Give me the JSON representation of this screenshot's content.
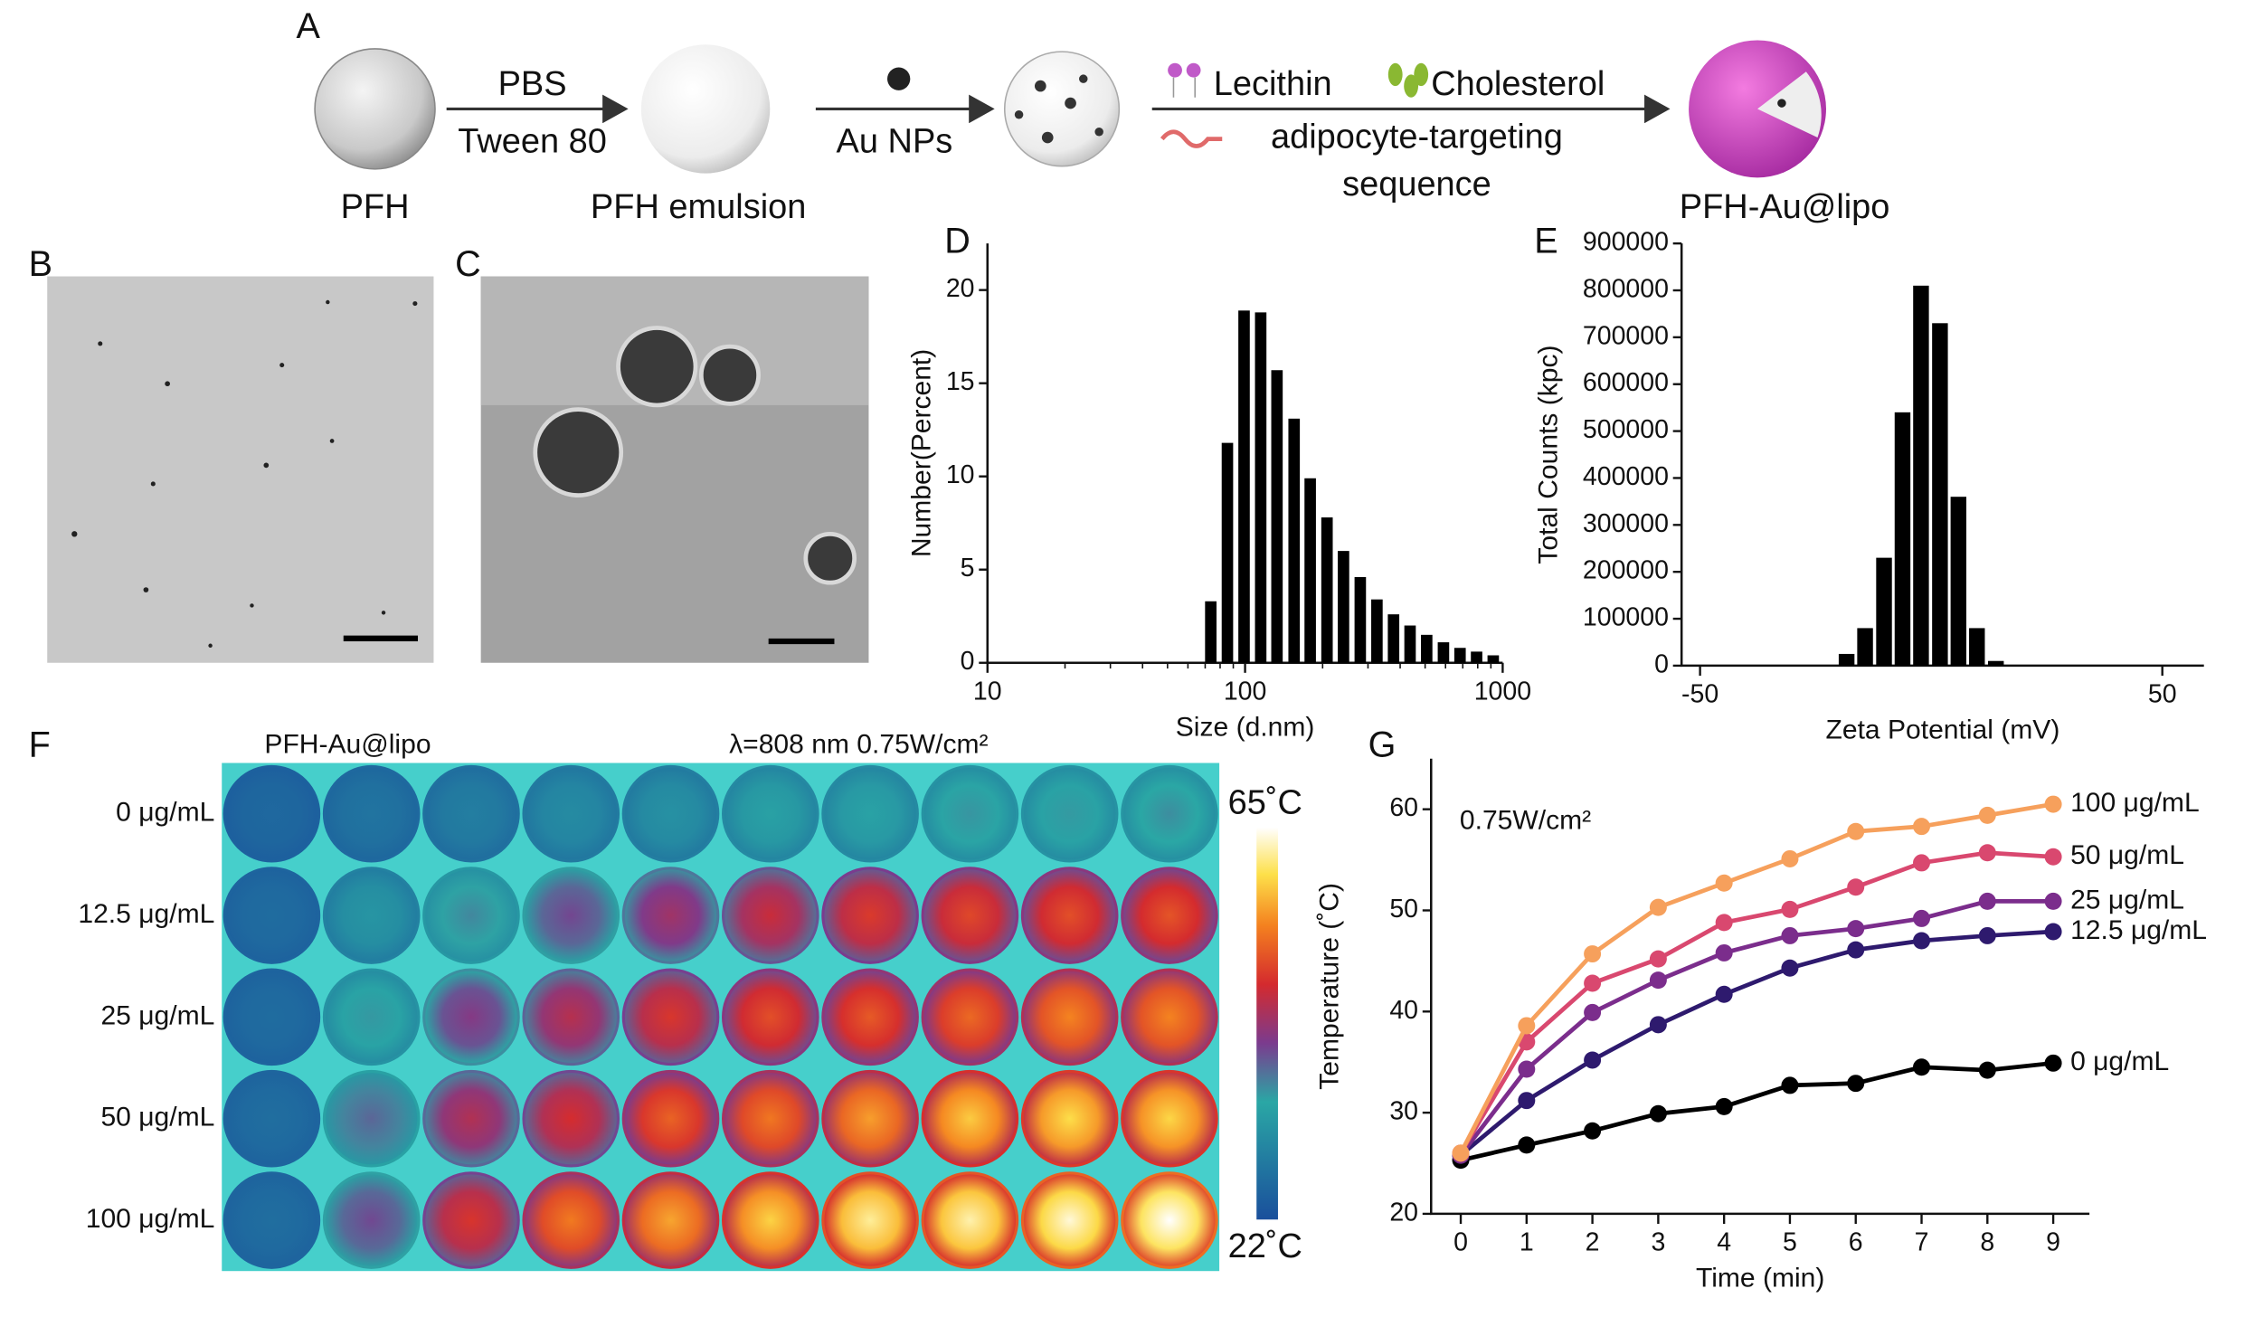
{
  "panel_labels": [
    "A",
    "B",
    "C",
    "D",
    "E",
    "F",
    "G"
  ],
  "schematic": {
    "start": "PFH",
    "arrow1_top": "PBS",
    "arrow1_bottom": "Tween 80",
    "emulsion": "PFH emulsion",
    "arrow2_bottom": "Au NPs",
    "lecithin": "Lecithin",
    "cholesterol": "Cholesterol",
    "targeting": "adipocyte-targeting",
    "targeting_2": "sequence",
    "product": "PFH-Au@lipo"
  },
  "thermal": {
    "title": "PFH-Au@lipo",
    "laser": "λ=808 nm 0.75W/cm²",
    "rows": [
      "0 μg/mL",
      "12.5 μg/mL",
      "25 μg/mL",
      "50 μg/mL",
      "100 μg/mL"
    ],
    "colorbar": {
      "lim": [
        22,
        65
      ],
      "ticks": [
        {
          "value": 65,
          "label": "65˚C"
        },
        {
          "value": 22,
          "label": "22˚C"
        }
      ]
    }
  },
  "chart_data": [
    {
      "type": "histogram",
      "xlabel": "Size (d.nm)",
      "ylabel": "Number(Percent)",
      "xscale": "log",
      "color": "#000000",
      "x": [
        73.6,
        85.4,
        99.1,
        115,
        133,
        155,
        179,
        208,
        241,
        280,
        325,
        377,
        437,
        507,
        589,
        683,
        792,
        919
      ],
      "values": [
        3.3,
        11.8,
        18.9,
        18.8,
        15.7,
        13.1,
        9.9,
        7.8,
        6.0,
        4.6,
        3.4,
        2.6,
        2.0,
        1.5,
        1.1,
        0.8,
        0.6,
        0.4
      ],
      "xlim": [
        10,
        1000
      ],
      "xticks": [
        10,
        100,
        1000
      ],
      "ylim": [
        0,
        22.5
      ],
      "yticks": [
        0,
        5,
        10,
        15,
        20
      ]
    },
    {
      "type": "histogram",
      "xlabel": "Zeta Potential (mV)",
      "ylabel": "Total Counts (kpc)",
      "xscale": "linear",
      "color": "#000000",
      "x": [
        -18.3,
        -14.3,
        -10.2,
        -6.2,
        -2.2,
        1.9,
        5.9,
        9.9,
        14.0
      ],
      "values": [
        25000,
        80000,
        230000,
        540000,
        810000,
        730000,
        360000,
        80000,
        10000
      ],
      "xlim": [
        -54,
        59
      ],
      "xticks": [
        -50,
        50
      ],
      "ylim": [
        0,
        900000
      ],
      "yticks": [
        0,
        100000,
        200000,
        300000,
        400000,
        500000,
        600000,
        700000,
        800000,
        900000
      ]
    },
    {
      "type": "line",
      "xlabel": "Time (min)",
      "ylabel": "Temperature (˚C)",
      "annotation": "0.75W/cm²",
      "x": [
        0,
        1,
        2,
        3,
        4,
        5,
        6,
        7,
        8,
        9
      ],
      "xlim": [
        -0.45,
        9.55
      ],
      "xticks": [
        0,
        1,
        2,
        3,
        4,
        5,
        6,
        7,
        8,
        9
      ],
      "ylim": [
        20,
        65
      ],
      "yticks": [
        20,
        30,
        40,
        50,
        60
      ],
      "series": [
        {
          "name": "0 μg/mL",
          "color": "#000000",
          "values": [
            25.3,
            26.8,
            28.2,
            29.9,
            30.6,
            32.7,
            32.9,
            34.5,
            34.2,
            34.9
          ]
        },
        {
          "name": "12.5 μg/mL",
          "color": "#2e1a6e",
          "values": [
            25.8,
            31.2,
            35.2,
            38.7,
            41.7,
            44.3,
            46.1,
            47.0,
            47.5,
            47.9
          ]
        },
        {
          "name": "25 μg/mL",
          "color": "#7b2d8c",
          "values": [
            25.8,
            34.3,
            39.9,
            43.1,
            45.8,
            47.5,
            48.2,
            49.2,
            50.9,
            50.9
          ]
        },
        {
          "name": "50 μg/mL",
          "color": "#d9486f",
          "values": [
            26.0,
            37.0,
            42.8,
            45.2,
            48.8,
            50.1,
            52.3,
            54.7,
            55.7,
            55.3
          ]
        },
        {
          "name": "100 μg/mL",
          "color": "#f6a05c",
          "values": [
            26.0,
            38.6,
            45.7,
            50.3,
            52.7,
            55.1,
            57.8,
            58.3,
            59.4,
            60.5
          ]
        }
      ]
    }
  ]
}
